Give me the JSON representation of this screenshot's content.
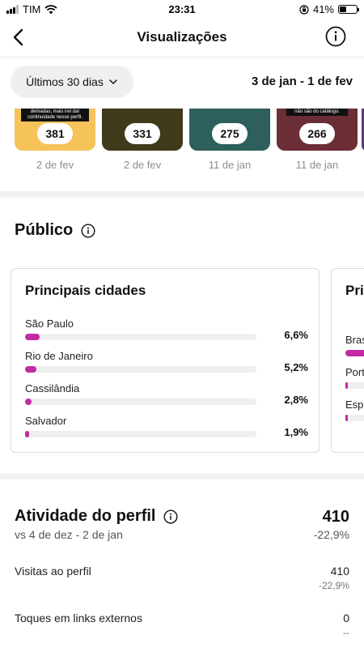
{
  "status_bar": {
    "carrier": "TIM",
    "time": "23:31",
    "battery": "41%",
    "battery_level": 0.41
  },
  "nav": {
    "title": "Visualizações",
    "back_icon": "chevron-left-icon",
    "info_icon": "info-circle-icon"
  },
  "filter": {
    "range_label": "Últimos 30 dias",
    "date_range": "3 de jan - 1 de fev"
  },
  "stories": [
    {
      "caption": "demadas, mais irei dar continuidade nesse perfil.",
      "count": "381",
      "date": "2 de fev",
      "color": "#f5c35a"
    },
    {
      "caption": "",
      "count": "331",
      "date": "2 de fev",
      "color": "#3f3a1a"
    },
    {
      "caption": "",
      "count": "275",
      "date": "11 de jan",
      "color": "#2d5f5c"
    },
    {
      "caption": "não são do catálogo.",
      "count": "266",
      "date": "11 de jan",
      "color": "#6b2d36"
    }
  ],
  "public": {
    "title": "Público",
    "cities_card": {
      "title": "Principais cidades",
      "rows": [
        {
          "label": "São Paulo",
          "value": "6,6%",
          "fraction": 0.066
        },
        {
          "label": "Rio de Janeiro",
          "value": "5,2%",
          "fraction": 0.052
        },
        {
          "label": "Cassilândia",
          "value": "2,8%",
          "fraction": 0.028
        },
        {
          "label": "Salvador",
          "value": "1,9%",
          "fraction": 0.019
        }
      ]
    },
    "countries_card": {
      "title": "Pri",
      "rows": [
        {
          "label": "Bras",
          "fraction": 0.9
        },
        {
          "label": "Port",
          "fraction": 0.05
        },
        {
          "label": "Espa",
          "fraction": 0.03
        }
      ]
    }
  },
  "activity": {
    "title": "Atividade do perfil",
    "value": "410",
    "compare": "vs 4 de dez - 2 de jan",
    "change": "-22,9%",
    "metrics": [
      {
        "label": "Visitas ao perfil",
        "value": "410",
        "change": "-22,9%"
      },
      {
        "label": "Toques em links externos",
        "value": "0",
        "change": "--"
      }
    ]
  },
  "colors": {
    "accent": "#c32aa3",
    "pill_bg": "#efefef",
    "divider": "#f2f2f2"
  }
}
